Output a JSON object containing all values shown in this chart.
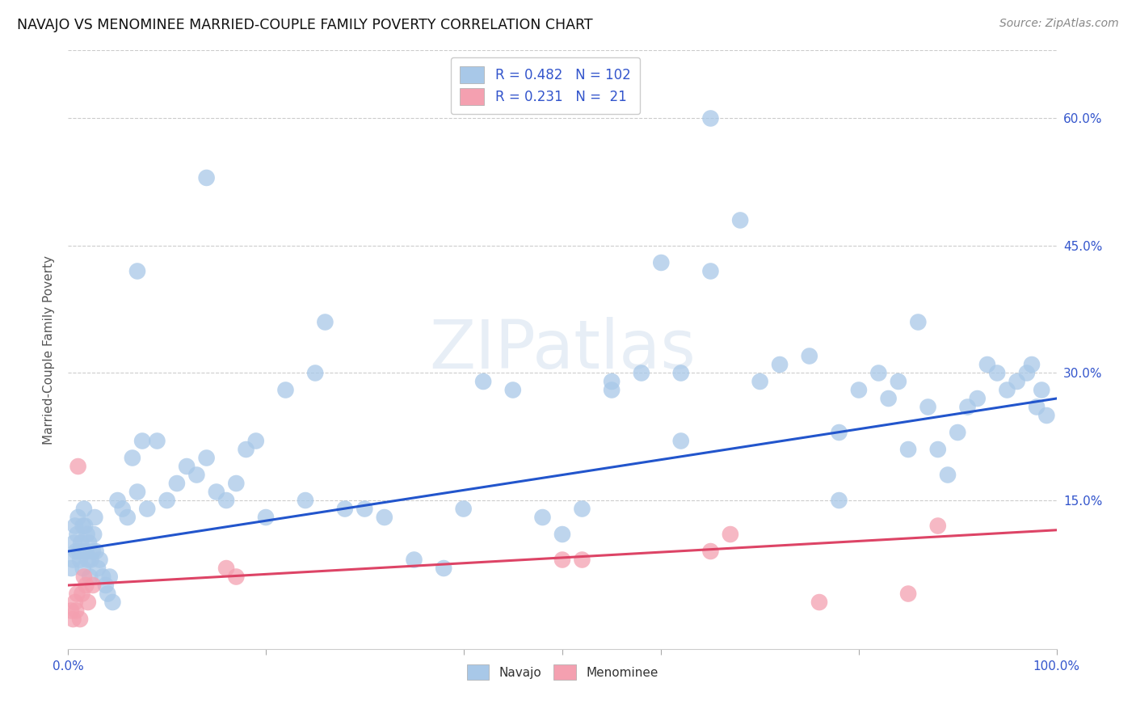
{
  "title": "NAVAJO VS MENOMINEE MARRIED-COUPLE FAMILY POVERTY CORRELATION CHART",
  "source": "Source: ZipAtlas.com",
  "ylabel": "Married-Couple Family Poverty",
  "xlim": [
    0.0,
    1.0
  ],
  "ylim": [
    -0.025,
    0.68
  ],
  "navajo_R": 0.482,
  "navajo_N": 102,
  "menominee_R": 0.231,
  "menominee_N": 21,
  "navajo_color": "#a8c8e8",
  "menominee_color": "#f4a0b0",
  "navajo_line_color": "#2255cc",
  "menominee_line_color": "#dd4466",
  "legend_text_color": "#3355cc",
  "background_color": "#ffffff",
  "grid_color": "#cccccc",
  "ytick_color": "#3355cc",
  "xtick_color": "#3355cc",
  "ylabel_color": "#555555",
  "navajo_x": [
    0.003,
    0.005,
    0.006,
    0.007,
    0.008,
    0.009,
    0.01,
    0.011,
    0.012,
    0.013,
    0.015,
    0.015,
    0.016,
    0.017,
    0.018,
    0.019,
    0.02,
    0.021,
    0.022,
    0.023,
    0.025,
    0.026,
    0.027,
    0.028,
    0.03,
    0.032,
    0.035,
    0.038,
    0.04,
    0.042,
    0.045,
    0.05,
    0.055,
    0.06,
    0.065,
    0.07,
    0.075,
    0.08,
    0.09,
    0.1,
    0.11,
    0.12,
    0.13,
    0.14,
    0.15,
    0.16,
    0.17,
    0.18,
    0.19,
    0.2,
    0.22,
    0.24,
    0.25,
    0.26,
    0.28,
    0.3,
    0.32,
    0.35,
    0.38,
    0.4,
    0.42,
    0.45,
    0.48,
    0.5,
    0.52,
    0.55,
    0.58,
    0.6,
    0.62,
    0.65,
    0.68,
    0.7,
    0.72,
    0.75,
    0.78,
    0.8,
    0.82,
    0.83,
    0.84,
    0.85,
    0.86,
    0.87,
    0.88,
    0.89,
    0.9,
    0.91,
    0.92,
    0.93,
    0.94,
    0.95,
    0.96,
    0.97,
    0.975,
    0.98,
    0.985,
    0.99,
    0.14,
    0.65,
    0.07,
    0.55,
    0.62,
    0.78
  ],
  "navajo_y": [
    0.07,
    0.08,
    0.1,
    0.12,
    0.09,
    0.11,
    0.13,
    0.09,
    0.08,
    0.1,
    0.07,
    0.12,
    0.14,
    0.12,
    0.09,
    0.11,
    0.08,
    0.1,
    0.06,
    0.08,
    0.09,
    0.11,
    0.13,
    0.09,
    0.07,
    0.08,
    0.06,
    0.05,
    0.04,
    0.06,
    0.03,
    0.15,
    0.14,
    0.13,
    0.2,
    0.16,
    0.22,
    0.14,
    0.22,
    0.15,
    0.17,
    0.19,
    0.18,
    0.2,
    0.16,
    0.15,
    0.17,
    0.21,
    0.22,
    0.13,
    0.28,
    0.15,
    0.3,
    0.36,
    0.14,
    0.14,
    0.13,
    0.08,
    0.07,
    0.14,
    0.29,
    0.28,
    0.13,
    0.11,
    0.14,
    0.28,
    0.3,
    0.43,
    0.3,
    0.42,
    0.48,
    0.29,
    0.31,
    0.32,
    0.23,
    0.28,
    0.3,
    0.27,
    0.29,
    0.21,
    0.36,
    0.26,
    0.21,
    0.18,
    0.23,
    0.26,
    0.27,
    0.31,
    0.3,
    0.28,
    0.29,
    0.3,
    0.31,
    0.26,
    0.28,
    0.25,
    0.53,
    0.6,
    0.42,
    0.29,
    0.22,
    0.15
  ],
  "menominee_x": [
    0.003,
    0.005,
    0.007,
    0.008,
    0.009,
    0.01,
    0.012,
    0.014,
    0.016,
    0.018,
    0.02,
    0.025,
    0.16,
    0.17,
    0.5,
    0.52,
    0.65,
    0.67,
    0.76,
    0.85,
    0.88
  ],
  "menominee_y": [
    0.02,
    0.01,
    0.03,
    0.02,
    0.04,
    0.19,
    0.01,
    0.04,
    0.06,
    0.05,
    0.03,
    0.05,
    0.07,
    0.06,
    0.08,
    0.08,
    0.09,
    0.11,
    0.03,
    0.04,
    0.12
  ],
  "xtick_positions": [
    0.0,
    0.2,
    0.4,
    0.5,
    0.6,
    0.8,
    1.0
  ],
  "xtick_labels_show": {
    "0.0": "0.0%",
    "1.0": "100.0%"
  },
  "ytick_vals": [
    0.15,
    0.3,
    0.45,
    0.6
  ],
  "ytick_labels": [
    "15.0%",
    "30.0%",
    "45.0%",
    "60.0%"
  ],
  "navajo_line_x": [
    0.0,
    1.0
  ],
  "navajo_line_y": [
    0.09,
    0.27
  ],
  "menominee_line_x": [
    0.0,
    1.0
  ],
  "menominee_line_y": [
    0.05,
    0.115
  ]
}
